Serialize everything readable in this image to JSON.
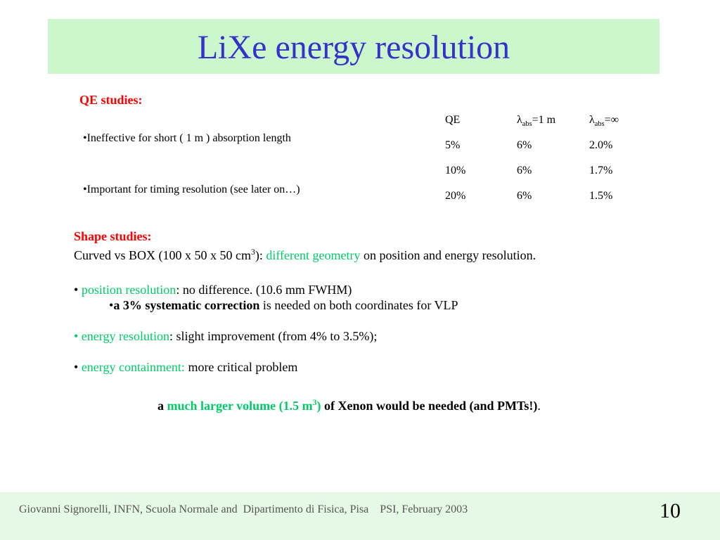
{
  "title": "LiXe energy resolution",
  "qe_section": {
    "heading": "QE studies:",
    "bullets": [
      "•Ineffective for short ( 1 m ) absorption length",
      "•Important for timing resolution (see later on…)"
    ],
    "table": {
      "header": [
        [
          {
            "text": "QE"
          }
        ],
        [
          {
            "text": "λ"
          },
          {
            "text": "abs",
            "sub": true
          },
          {
            "text": "=1 m"
          }
        ],
        [
          {
            "text": "λ"
          },
          {
            "text": "abs",
            "sub": true
          },
          {
            "text": "=∞"
          }
        ]
      ],
      "rows": [
        [
          "5%",
          "6%",
          "2.0%"
        ],
        [
          "10%",
          "6%",
          "1.7%"
        ],
        [
          "20%",
          "6%",
          "1.5%"
        ]
      ]
    }
  },
  "shape_section": {
    "heading": "Shape studies:",
    "lines": [
      [
        {
          "text": "Curved vs BOX (100 x 50 x 50 cm"
        },
        {
          "text": "3",
          "sup": true
        },
        {
          "text": "): "
        },
        {
          "text": "different geometry",
          "color": "#00cc66"
        },
        {
          "text": " on position and energy resolution."
        }
      ],
      [
        {
          "text": "• "
        },
        {
          "text": "position resolution",
          "color": "#00cc66"
        },
        {
          "text": ": no difference. (10.6 mm FWHM)"
        }
      ],
      [
        {
          "text": "•"
        },
        {
          "text": "a 3% systematic correction",
          "bold": true
        },
        {
          "text": " is needed on both coordinates for VLP"
        }
      ],
      [
        {
          "text": "• energy resolution",
          "color": "#00cc66"
        },
        {
          "text": ": slight improvement (from 4% to 3.5%);"
        }
      ],
      [
        {
          "text": "• "
        },
        {
          "text": "energy containment:",
          "color": "#00cc66"
        },
        {
          "text": " more critical problem"
        }
      ],
      [
        {
          "text": "a ",
          "bold": true
        },
        {
          "text": "much larger volume (1.5 m",
          "bold": true,
          "color": "#00cc66"
        },
        {
          "text": "3",
          "sup": true,
          "bold": true,
          "color": "#00cc66"
        },
        {
          "text": ")",
          "bold": true,
          "color": "#00cc66"
        },
        {
          "text": " of Xenon would be needed (and PMTs!)",
          "bold": true
        },
        {
          "text": "."
        }
      ]
    ]
  },
  "footer": {
    "text": "Giovanni Signorelli, INFN, Scuola Normale and  Dipartimento di Fisica, Pisa    PSI, February 2003",
    "page_number": "10"
  }
}
